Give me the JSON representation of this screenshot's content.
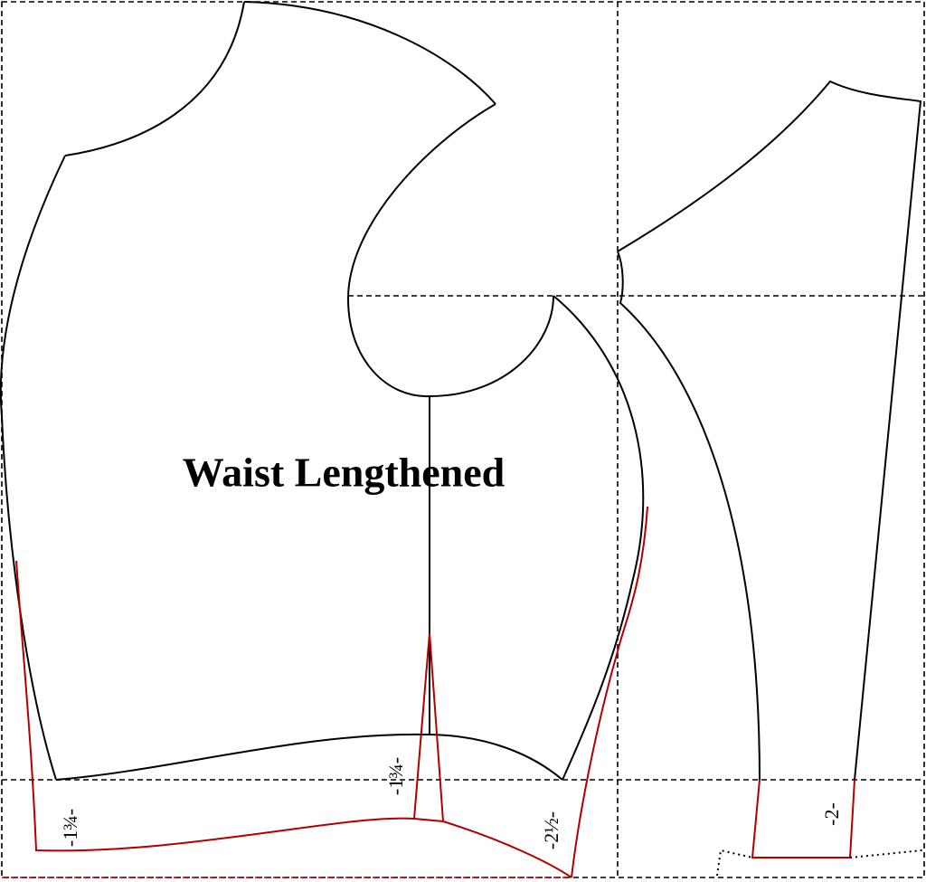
{
  "title": "Waist Lengthened",
  "labels": [
    "-1¾-",
    "-1¾-",
    "-2½-",
    "-2-"
  ]
}
